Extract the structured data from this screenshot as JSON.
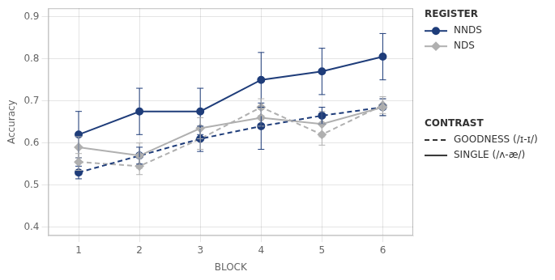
{
  "chart_data": {
    "type": "line",
    "xlabel": "BLOCK",
    "ylabel": "Accuracy",
    "x": [
      1,
      2,
      3,
      4,
      5,
      6
    ],
    "xlim": [
      0.5,
      6.5
    ],
    "xticks": [
      1,
      2,
      3,
      4,
      5,
      6
    ],
    "ylim": [
      0.38,
      0.92
    ],
    "yticks": [
      0.4,
      0.5,
      0.6,
      0.7,
      0.8,
      0.9
    ],
    "grid": true,
    "series": [
      {
        "color": "#1f3d7a",
        "marker": "circle",
        "line_style": "solid",
        "values": [
          0.62,
          0.675,
          0.675,
          0.75,
          0.77,
          0.805
        ],
        "errors": [
          0.055,
          0.055,
          0.055,
          0.065,
          0.055,
          0.055
        ]
      },
      {
        "color": "#b0b0b0",
        "marker": "diamond",
        "line_style": "solid",
        "values": [
          0.59,
          0.57,
          0.635,
          0.66,
          0.645,
          0.685
        ],
        "errors": [
          0.025,
          0.03,
          0.025,
          0.02,
          0.03,
          0.02
        ]
      },
      {
        "color": "#1f3d7a",
        "marker": "circle",
        "line_style": "dashed",
        "values": [
          0.53,
          0.57,
          0.61,
          0.64,
          0.665,
          0.685
        ],
        "errors": [
          0.015,
          0.02,
          0.03,
          0.055,
          0.02,
          0.02
        ]
      },
      {
        "color": "#b0b0b0",
        "marker": "diamond",
        "line_style": "dashed",
        "values": [
          0.555,
          0.545,
          0.61,
          0.685,
          0.62,
          0.69
        ],
        "errors": [
          0.02,
          0.02,
          0.025,
          0.02,
          0.025,
          0.02
        ]
      }
    ],
    "legend": "right",
    "legend_groups": [
      {
        "title": "REGISTER",
        "entries": [
          {
            "name": "NNDS",
            "color": "#1f3d7a",
            "marker": "circle",
            "line_style": "solid"
          },
          {
            "name": "NDS",
            "color": "#b0b0b0",
            "marker": "diamond",
            "line_style": "solid"
          }
        ]
      },
      {
        "title": "CONTRAST",
        "entries": [
          {
            "name": "GOODNESS (/ɪ-ɪ/)",
            "color": "#333333",
            "line_style": "dashed"
          },
          {
            "name": "SINGLE (/ʌ-æ/)",
            "color": "#333333",
            "line_style": "solid"
          }
        ]
      }
    ]
  }
}
